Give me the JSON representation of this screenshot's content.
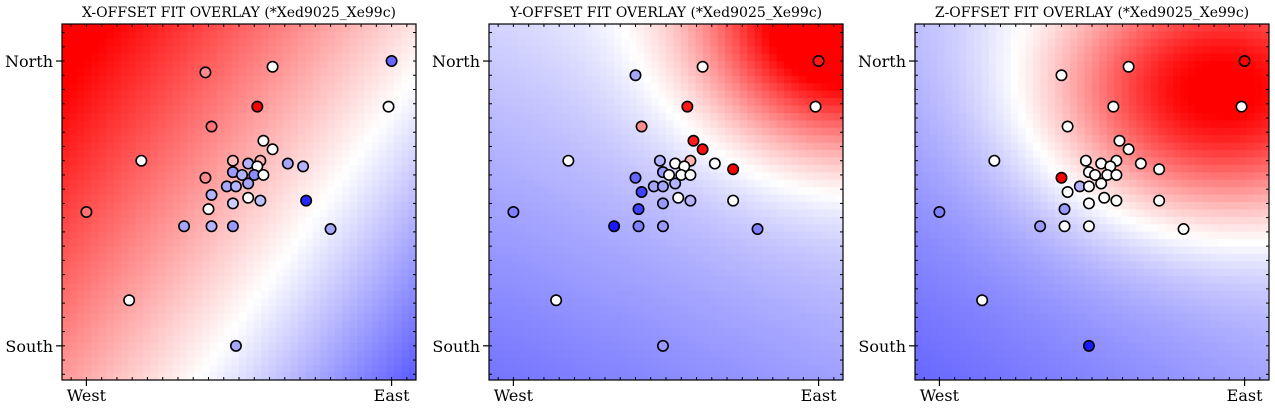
{
  "figure": {
    "background": "#ffffff",
    "colormap": [
      "#0000ff",
      "#ffffff",
      "#ff0000"
    ]
  },
  "chart_data": [
    {
      "type": "heatmap",
      "title": "X-OFFSET FIT OVERLAY (*Xed9025_Xe99c)",
      "x_tick_labels": [
        "West",
        "East"
      ],
      "y_tick_labels": [
        "North",
        "South"
      ],
      "xlim": [
        -0.08,
        1.08
      ],
      "ylim": [
        -0.12,
        1.13
      ],
      "grid": false,
      "legend": "none",
      "field": {
        "kind": "linear",
        "a": -0.9,
        "b": 0.6,
        "c": 0.75
      },
      "points": [
        {
          "x": 0.0,
          "y": 0.47,
          "v": 0.55
        },
        {
          "x": 0.14,
          "y": 0.16,
          "v": 0.0
        },
        {
          "x": 0.18,
          "y": 0.65,
          "v": 0.0
        },
        {
          "x": 0.39,
          "y": 0.96,
          "v": 0.45
        },
        {
          "x": 0.61,
          "y": 0.98,
          "v": 0.0
        },
        {
          "x": 1.0,
          "y": 1.0,
          "v": -0.6
        },
        {
          "x": 0.99,
          "y": 0.84,
          "v": 0.0
        },
        {
          "x": 0.56,
          "y": 0.84,
          "v": 1.0
        },
        {
          "x": 0.41,
          "y": 0.77,
          "v": 0.55
        },
        {
          "x": 0.58,
          "y": 0.72,
          "v": 0.0
        },
        {
          "x": 0.61,
          "y": 0.69,
          "v": 0.0
        },
        {
          "x": 0.48,
          "y": 0.65,
          "v": 0.25
        },
        {
          "x": 0.57,
          "y": 0.65,
          "v": 0.3
        },
        {
          "x": 0.53,
          "y": 0.64,
          "v": -0.3
        },
        {
          "x": 0.56,
          "y": 0.63,
          "v": 0.0
        },
        {
          "x": 0.66,
          "y": 0.64,
          "v": -0.35
        },
        {
          "x": 0.71,
          "y": 0.63,
          "v": -0.3
        },
        {
          "x": 0.48,
          "y": 0.61,
          "v": -0.4
        },
        {
          "x": 0.39,
          "y": 0.59,
          "v": 0.45
        },
        {
          "x": 0.51,
          "y": 0.6,
          "v": -0.3
        },
        {
          "x": 0.55,
          "y": 0.6,
          "v": -0.45
        },
        {
          "x": 0.58,
          "y": 0.6,
          "v": 0.0
        },
        {
          "x": 0.46,
          "y": 0.56,
          "v": -0.35
        },
        {
          "x": 0.49,
          "y": 0.56,
          "v": -0.3
        },
        {
          "x": 0.53,
          "y": 0.57,
          "v": -0.35
        },
        {
          "x": 0.41,
          "y": 0.53,
          "v": -0.3
        },
        {
          "x": 0.53,
          "y": 0.52,
          "v": 0.0
        },
        {
          "x": 0.57,
          "y": 0.51,
          "v": -0.25
        },
        {
          "x": 0.72,
          "y": 0.51,
          "v": -0.85
        },
        {
          "x": 0.4,
          "y": 0.48,
          "v": 0.0
        },
        {
          "x": 0.48,
          "y": 0.5,
          "v": -0.2
        },
        {
          "x": 0.32,
          "y": 0.42,
          "v": -0.35
        },
        {
          "x": 0.41,
          "y": 0.42,
          "v": -0.3
        },
        {
          "x": 0.48,
          "y": 0.42,
          "v": -0.4
        },
        {
          "x": 0.8,
          "y": 0.41,
          "v": -0.35
        },
        {
          "x": 0.49,
          "y": 0.0,
          "v": -0.35
        }
      ]
    },
    {
      "type": "heatmap",
      "title": "Y-OFFSET FIT OVERLAY (*Xed9025_Xe99c)",
      "x_tick_labels": [
        "West",
        "East"
      ],
      "y_tick_labels": [
        "North",
        "South"
      ],
      "xlim": [
        -0.08,
        1.08
      ],
      "ylim": [
        -0.12,
        1.13
      ],
      "grid": false,
      "legend": "none",
      "field": {
        "kind": "blob",
        "cx": 1.08,
        "cy": 1.13,
        "sx": 0.32,
        "sy": 0.3,
        "amp": 1.4,
        "base": -0.5,
        "xcoef": 0.15,
        "ycoef": 0.3
      },
      "points": [
        {
          "x": 0.0,
          "y": 0.47,
          "v": -0.5
        },
        {
          "x": 0.14,
          "y": 0.16,
          "v": 0.0
        },
        {
          "x": 0.18,
          "y": 0.65,
          "v": 0.0
        },
        {
          "x": 0.4,
          "y": 0.95,
          "v": -0.35
        },
        {
          "x": 0.62,
          "y": 0.98,
          "v": 0.0
        },
        {
          "x": 1.0,
          "y": 1.0,
          "v": 0.9
        },
        {
          "x": 0.99,
          "y": 0.84,
          "v": 0.0
        },
        {
          "x": 0.57,
          "y": 0.84,
          "v": 0.9
        },
        {
          "x": 0.42,
          "y": 0.77,
          "v": 0.45
        },
        {
          "x": 0.59,
          "y": 0.72,
          "v": 0.9
        },
        {
          "x": 0.62,
          "y": 0.69,
          "v": 0.95
        },
        {
          "x": 0.48,
          "y": 0.65,
          "v": -0.3
        },
        {
          "x": 0.58,
          "y": 0.65,
          "v": 0.3
        },
        {
          "x": 0.53,
          "y": 0.64,
          "v": 0.0
        },
        {
          "x": 0.56,
          "y": 0.63,
          "v": 0.0
        },
        {
          "x": 0.66,
          "y": 0.64,
          "v": 0.0
        },
        {
          "x": 0.72,
          "y": 0.62,
          "v": 1.0
        },
        {
          "x": 0.49,
          "y": 0.61,
          "v": -0.4
        },
        {
          "x": 0.4,
          "y": 0.59,
          "v": -0.6
        },
        {
          "x": 0.51,
          "y": 0.6,
          "v": 0.0
        },
        {
          "x": 0.55,
          "y": 0.6,
          "v": 0.0
        },
        {
          "x": 0.58,
          "y": 0.6,
          "v": 0.0
        },
        {
          "x": 0.46,
          "y": 0.56,
          "v": -0.35
        },
        {
          "x": 0.49,
          "y": 0.56,
          "v": -0.35
        },
        {
          "x": 0.53,
          "y": 0.57,
          "v": -0.3
        },
        {
          "x": 0.42,
          "y": 0.54,
          "v": -0.75
        },
        {
          "x": 0.54,
          "y": 0.52,
          "v": 0.0
        },
        {
          "x": 0.58,
          "y": 0.51,
          "v": -0.3
        },
        {
          "x": 0.72,
          "y": 0.51,
          "v": 0.0
        },
        {
          "x": 0.41,
          "y": 0.48,
          "v": -0.75
        },
        {
          "x": 0.49,
          "y": 0.5,
          "v": -0.4
        },
        {
          "x": 0.33,
          "y": 0.42,
          "v": -0.9
        },
        {
          "x": 0.41,
          "y": 0.42,
          "v": -0.5
        },
        {
          "x": 0.49,
          "y": 0.42,
          "v": -0.4
        },
        {
          "x": 0.8,
          "y": 0.41,
          "v": -0.5
        },
        {
          "x": 0.49,
          "y": 0.0,
          "v": -0.4
        }
      ]
    },
    {
      "type": "heatmap",
      "title": "Z-OFFSET FIT OVERLAY (*Xed9025_Xe99c)",
      "x_tick_labels": [
        "West",
        "East"
      ],
      "y_tick_labels": [
        "North",
        "South"
      ],
      "xlim": [
        -0.08,
        1.08
      ],
      "ylim": [
        -0.12,
        1.13
      ],
      "grid": false,
      "legend": "none",
      "field": {
        "kind": "blob",
        "cx": 0.9,
        "cy": 0.88,
        "sx": 0.38,
        "sy": 0.3,
        "amp": 1.2,
        "base": -0.55,
        "xcoef": 0.2,
        "ycoef": 0.25
      },
      "points": [
        {
          "x": 0.0,
          "y": 0.47,
          "v": -0.5
        },
        {
          "x": 0.14,
          "y": 0.16,
          "v": 0.0
        },
        {
          "x": 0.18,
          "y": 0.65,
          "v": 0.0
        },
        {
          "x": 0.4,
          "y": 0.95,
          "v": 0.0
        },
        {
          "x": 0.62,
          "y": 0.98,
          "v": 0.0
        },
        {
          "x": 1.0,
          "y": 1.0,
          "v": 1.0
        },
        {
          "x": 0.99,
          "y": 0.84,
          "v": 0.0
        },
        {
          "x": 0.57,
          "y": 0.84,
          "v": 0.0
        },
        {
          "x": 0.42,
          "y": 0.77,
          "v": 0.0
        },
        {
          "x": 0.59,
          "y": 0.72,
          "v": 0.0
        },
        {
          "x": 0.62,
          "y": 0.69,
          "v": 0.0
        },
        {
          "x": 0.48,
          "y": 0.65,
          "v": 0.0
        },
        {
          "x": 0.58,
          "y": 0.65,
          "v": 0.0
        },
        {
          "x": 0.53,
          "y": 0.64,
          "v": 0.0
        },
        {
          "x": 0.56,
          "y": 0.63,
          "v": 0.0
        },
        {
          "x": 0.66,
          "y": 0.64,
          "v": 0.0
        },
        {
          "x": 0.72,
          "y": 0.62,
          "v": 0.0
        },
        {
          "x": 0.49,
          "y": 0.61,
          "v": 0.0
        },
        {
          "x": 0.4,
          "y": 0.59,
          "v": 1.0
        },
        {
          "x": 0.51,
          "y": 0.6,
          "v": 0.0
        },
        {
          "x": 0.55,
          "y": 0.6,
          "v": 0.0
        },
        {
          "x": 0.58,
          "y": 0.6,
          "v": 0.0
        },
        {
          "x": 0.46,
          "y": 0.56,
          "v": -0.3
        },
        {
          "x": 0.49,
          "y": 0.56,
          "v": 0.0
        },
        {
          "x": 0.53,
          "y": 0.57,
          "v": 0.0
        },
        {
          "x": 0.42,
          "y": 0.54,
          "v": 0.0
        },
        {
          "x": 0.54,
          "y": 0.52,
          "v": 0.0
        },
        {
          "x": 0.58,
          "y": 0.51,
          "v": 0.0
        },
        {
          "x": 0.72,
          "y": 0.51,
          "v": 0.0
        },
        {
          "x": 0.41,
          "y": 0.48,
          "v": -0.4
        },
        {
          "x": 0.49,
          "y": 0.5,
          "v": 0.0
        },
        {
          "x": 0.33,
          "y": 0.42,
          "v": -0.4
        },
        {
          "x": 0.41,
          "y": 0.42,
          "v": 0.0
        },
        {
          "x": 0.49,
          "y": 0.42,
          "v": 0.0
        },
        {
          "x": 0.8,
          "y": 0.41,
          "v": 0.0
        },
        {
          "x": 0.49,
          "y": 0.0,
          "v": -0.9
        }
      ]
    }
  ]
}
